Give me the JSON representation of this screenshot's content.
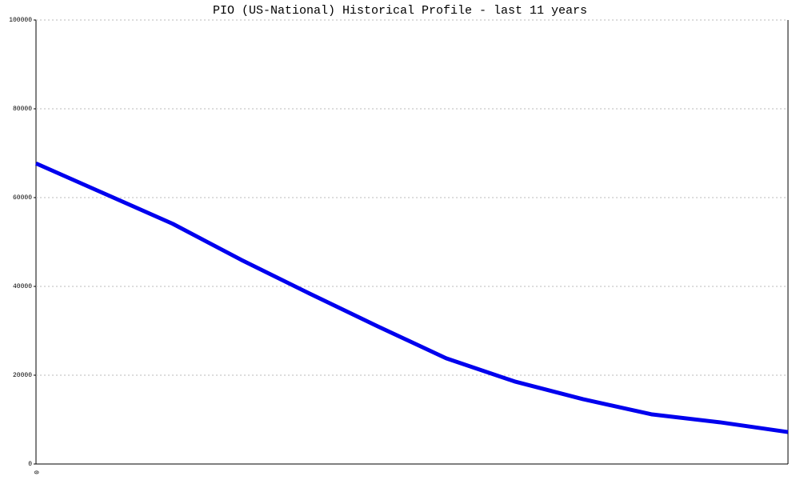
{
  "chart_data": {
    "type": "line",
    "title": "PIO (US-National) Historical Profile - last 11 years",
    "categories": [
      "0",
      null,
      null,
      null,
      null,
      null,
      null,
      null,
      null,
      null,
      null,
      null
    ],
    "series": [
      {
        "name": null,
        "color": "#0000ee",
        "values": [
          67700,
          60900,
          54100,
          46000,
          38400,
          31000,
          23800,
          18600,
          14600,
          11200,
          9400,
          7200
        ]
      }
    ],
    "ylim": [
      0,
      100000
    ],
    "yticks": [
      0,
      20000,
      40000,
      60000,
      80000,
      100000
    ],
    "grid": true
  }
}
